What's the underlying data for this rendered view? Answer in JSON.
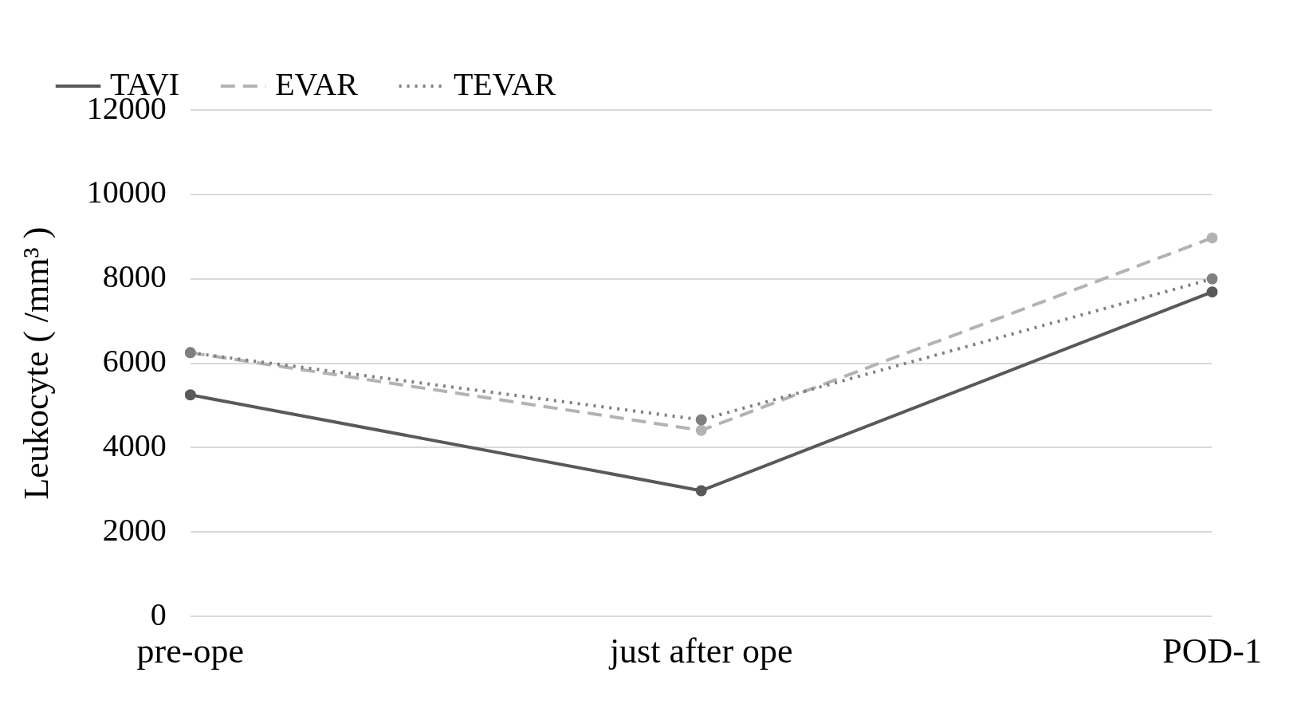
{
  "chart_data": {
    "type": "line",
    "ylabel": "Leukocyte ( /mm³ )",
    "categories": [
      "pre-ope",
      "just after ope",
      "POD-1"
    ],
    "series": [
      {
        "name": "TAVI",
        "color": "#595959",
        "line_style": "solid",
        "values": [
          5250,
          2980,
          7690
        ]
      },
      {
        "name": "EVAR",
        "color": "#b3b3b3",
        "line_style": "dashed",
        "values": [
          6250,
          4410,
          8970
        ]
      },
      {
        "name": "TEVAR",
        "color": "#808080",
        "line_style": "dotted",
        "values": [
          6250,
          4660,
          8000
        ]
      }
    ],
    "ylim": [
      0,
      12000
    ],
    "yticks": [
      0,
      2000,
      4000,
      6000,
      8000,
      10000,
      12000
    ],
    "grid": "y",
    "legend": "top left",
    "marker": "circle"
  }
}
